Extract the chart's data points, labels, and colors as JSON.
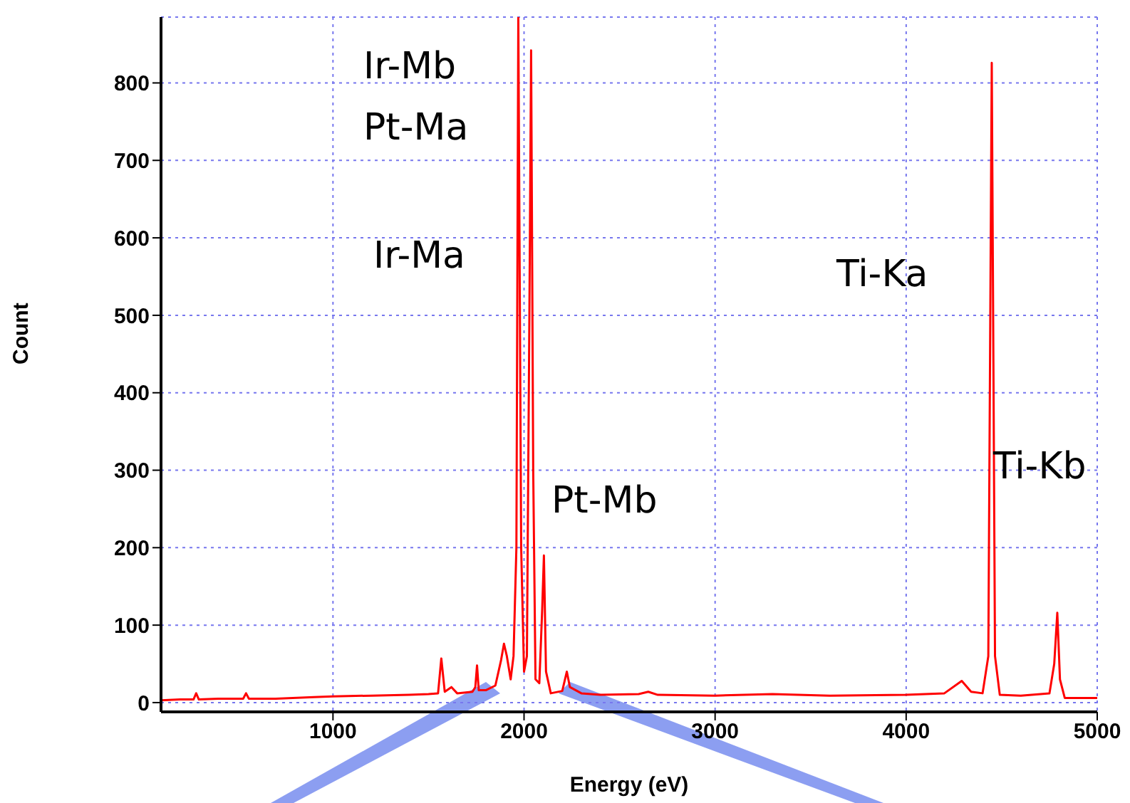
{
  "chart_data": {
    "type": "line",
    "xlabel": "Energy (eV)",
    "ylabel": "Count",
    "x": [
      100,
      200,
      270,
      284,
      298,
      400,
      530,
      545,
      560,
      700,
      900,
      1000,
      1200,
      1400,
      1500,
      1550,
      1567,
      1585,
      1620,
      1650,
      1730,
      1745,
      1754,
      1763,
      1800,
      1850,
      1880,
      1895,
      1910,
      1930,
      1945,
      1960,
      1970,
      1985,
      2000,
      2015,
      2028,
      2037,
      2048,
      2060,
      2080,
      2095,
      2104,
      2115,
      2140,
      2200,
      2224,
      2240,
      2300,
      2400,
      2600,
      2650,
      2700,
      3000,
      3300,
      3600,
      4000,
      4200,
      4291,
      4340,
      4400,
      4430,
      4448,
      4465,
      4490,
      4600,
      4750,
      4775,
      4791,
      4805,
      4830,
      4900,
      5000
    ],
    "series": [
      {
        "color": "#ff0000",
        "values": [
          3,
          4,
          4,
          12,
          4,
          5,
          5,
          12,
          5,
          5,
          7,
          8,
          9,
          10,
          11,
          12,
          57,
          14,
          20,
          12,
          14,
          20,
          48,
          16,
          16,
          22,
          55,
          76,
          60,
          30,
          60,
          200,
          885,
          200,
          40,
          60,
          500,
          842,
          300,
          30,
          25,
          120,
          190,
          40,
          12,
          15,
          40,
          20,
          12,
          10,
          11,
          14,
          10,
          9,
          11,
          9,
          10,
          12,
          28,
          14,
          12,
          60,
          826,
          60,
          10,
          9,
          12,
          50,
          116,
          30,
          6,
          6,
          6
        ]
      }
    ],
    "xlim": [
      100,
      5000
    ],
    "xticks": [
      1000,
      2000,
      3000,
      4000,
      5000
    ],
    "ylim": [
      -12,
      885
    ],
    "yticks": [
      0,
      100,
      200,
      300,
      400,
      500,
      600,
      700,
      800
    ],
    "grid": true,
    "marker": "none",
    "line_style": "solid",
    "annotations": [
      "Ir-Mb",
      "Pt-Ma",
      "Ir-Ma",
      "Pt-Mb",
      "Ti-Ka",
      "Ti-Kb"
    ]
  }
}
